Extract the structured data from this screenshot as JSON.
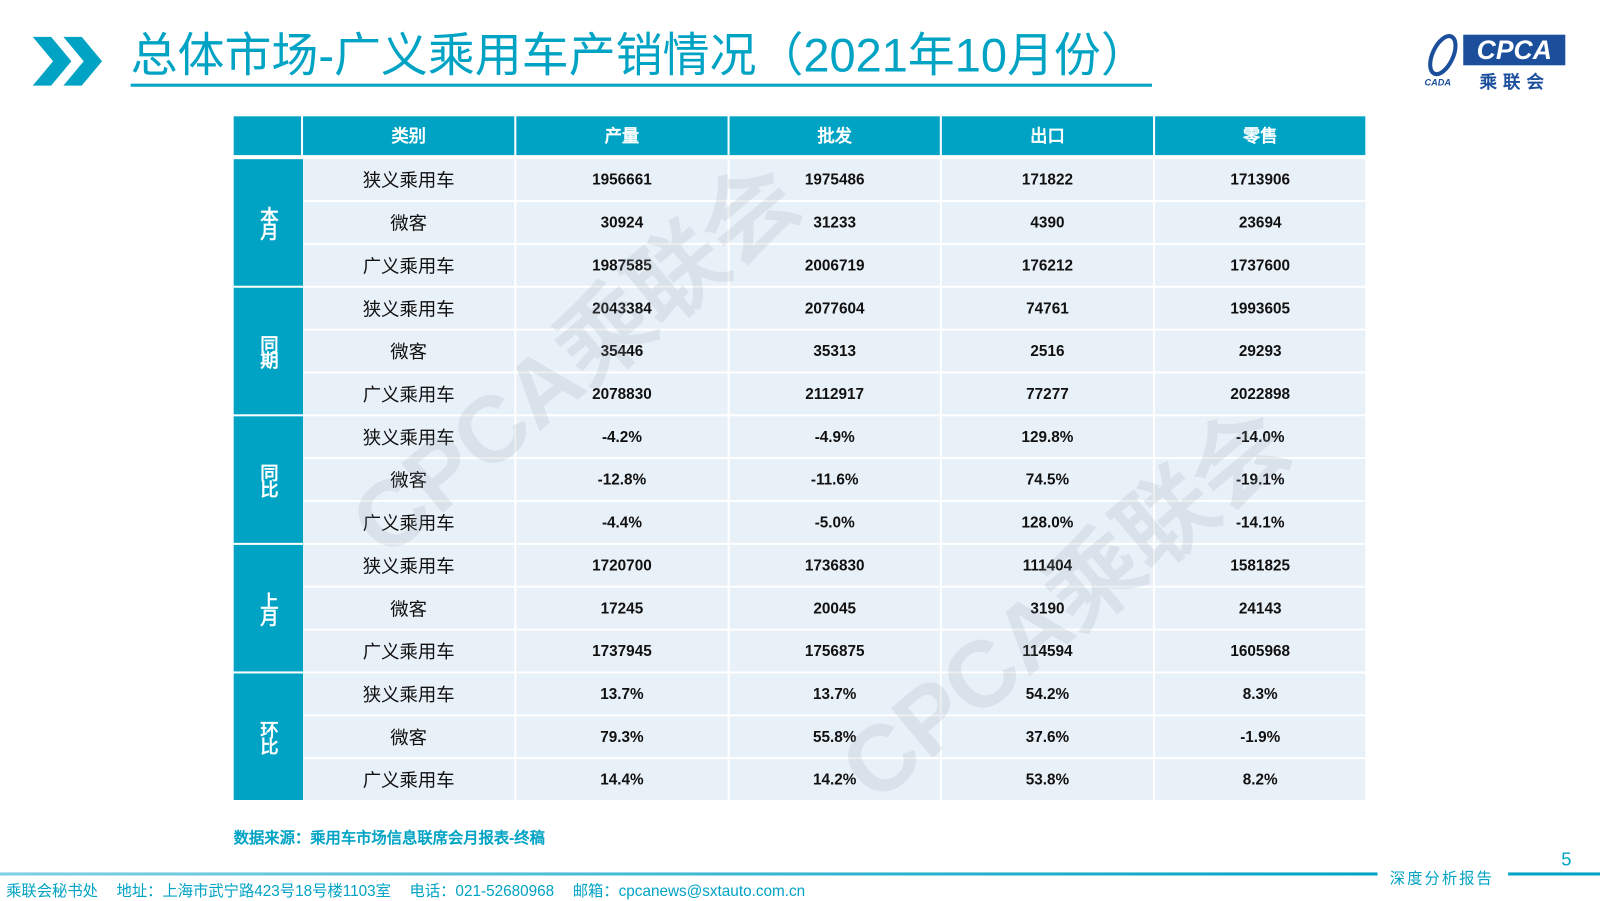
{
  "header": {
    "title": "总体市场-广义乘用车产销情况（2021年10月份）",
    "logo": {
      "main": "CPCA",
      "cn": "乘联会",
      "small": "CADA"
    }
  },
  "table": {
    "columns": [
      "",
      "类别",
      "产量",
      "批发",
      "出口",
      "零售"
    ],
    "groups": [
      {
        "label": "本月",
        "rows": [
          [
            "狭义乘用车",
            "1956661",
            "1975486",
            "171822",
            "1713906"
          ],
          [
            "微客",
            "30924",
            "31233",
            "4390",
            "23694"
          ],
          [
            "广义乘用车",
            "1987585",
            "2006719",
            "176212",
            "1737600"
          ]
        ]
      },
      {
        "label": "同期",
        "rows": [
          [
            "狭义乘用车",
            "2043384",
            "2077604",
            "74761",
            "1993605"
          ],
          [
            "微客",
            "35446",
            "35313",
            "2516",
            "29293"
          ],
          [
            "广义乘用车",
            "2078830",
            "2112917",
            "77277",
            "2022898"
          ]
        ]
      },
      {
        "label": "同比",
        "rows": [
          [
            "狭义乘用车",
            "-4.2%",
            "-4.9%",
            "129.8%",
            "-14.0%"
          ],
          [
            "微客",
            "-12.8%",
            "-11.6%",
            "74.5%",
            "-19.1%"
          ],
          [
            "广义乘用车",
            "-4.4%",
            "-5.0%",
            "128.0%",
            "-14.1%"
          ]
        ]
      },
      {
        "label": "上月",
        "rows": [
          [
            "狭义乘用车",
            "1720700",
            "1736830",
            "111404",
            "1581825"
          ],
          [
            "微客",
            "17245",
            "20045",
            "3190",
            "24143"
          ],
          [
            "广义乘用车",
            "1737945",
            "1756875",
            "114594",
            "1605968"
          ]
        ]
      },
      {
        "label": "环比",
        "rows": [
          [
            "狭义乘用车",
            "13.7%",
            "13.7%",
            "54.2%",
            "8.3%"
          ],
          [
            "微客",
            "79.3%",
            "55.8%",
            "37.6%",
            "-1.9%"
          ],
          [
            "广义乘用车",
            "14.4%",
            "14.2%",
            "53.8%",
            "8.2%"
          ]
        ]
      }
    ]
  },
  "watermark": "CPCA乘联会",
  "source": "数据来源：乘用车市场信息联席会月报表-终稿",
  "page_number": "5",
  "footer": {
    "tag": "深度分析报告",
    "org": "乘联会秘书处",
    "address": "地址：上海市武宁路423号18号楼1103室",
    "phone": "电话：021-52680968",
    "email": "邮箱：cpcanews@sxtauto.com.cn"
  },
  "colors": {
    "accent": "#00a3c4",
    "cell_bg": "#e8f0f8",
    "logo_blue": "#1b4f9c"
  }
}
